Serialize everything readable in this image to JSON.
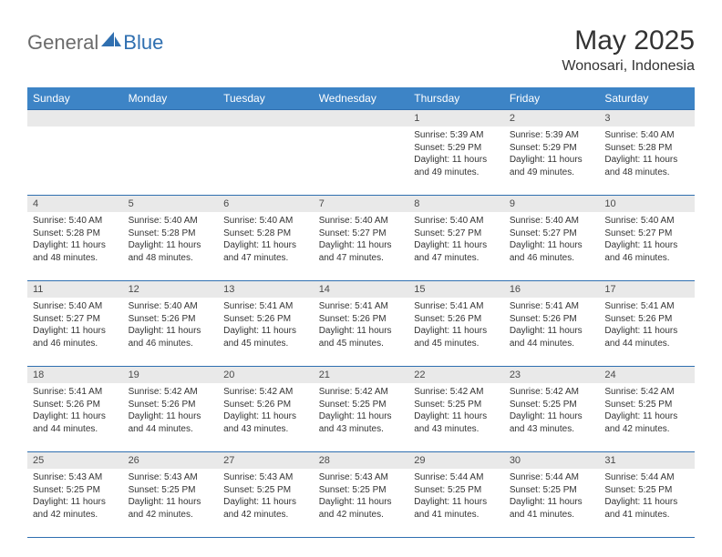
{
  "brand": {
    "general": "General",
    "blue": "Blue",
    "logo_color": "#2f6fb0",
    "text_gray": "#6b6b6b"
  },
  "title": {
    "month": "May 2025",
    "location": "Wonosari, Indonesia"
  },
  "colors": {
    "header_bg": "#3d84c6",
    "header_text": "#ffffff",
    "daynum_bg": "#e9e9e9",
    "border": "#2f6fb0",
    "body_text": "#333333"
  },
  "calendar": {
    "day_headers": [
      "Sunday",
      "Monday",
      "Tuesday",
      "Wednesday",
      "Thursday",
      "Friday",
      "Saturday"
    ],
    "weeks": [
      [
        null,
        null,
        null,
        null,
        {
          "n": "1",
          "sunrise": "5:39 AM",
          "sunset": "5:29 PM",
          "daylight": "11 hours and 49 minutes."
        },
        {
          "n": "2",
          "sunrise": "5:39 AM",
          "sunset": "5:29 PM",
          "daylight": "11 hours and 49 minutes."
        },
        {
          "n": "3",
          "sunrise": "5:40 AM",
          "sunset": "5:28 PM",
          "daylight": "11 hours and 48 minutes."
        }
      ],
      [
        {
          "n": "4",
          "sunrise": "5:40 AM",
          "sunset": "5:28 PM",
          "daylight": "11 hours and 48 minutes."
        },
        {
          "n": "5",
          "sunrise": "5:40 AM",
          "sunset": "5:28 PM",
          "daylight": "11 hours and 48 minutes."
        },
        {
          "n": "6",
          "sunrise": "5:40 AM",
          "sunset": "5:28 PM",
          "daylight": "11 hours and 47 minutes."
        },
        {
          "n": "7",
          "sunrise": "5:40 AM",
          "sunset": "5:27 PM",
          "daylight": "11 hours and 47 minutes."
        },
        {
          "n": "8",
          "sunrise": "5:40 AM",
          "sunset": "5:27 PM",
          "daylight": "11 hours and 47 minutes."
        },
        {
          "n": "9",
          "sunrise": "5:40 AM",
          "sunset": "5:27 PM",
          "daylight": "11 hours and 46 minutes."
        },
        {
          "n": "10",
          "sunrise": "5:40 AM",
          "sunset": "5:27 PM",
          "daylight": "11 hours and 46 minutes."
        }
      ],
      [
        {
          "n": "11",
          "sunrise": "5:40 AM",
          "sunset": "5:27 PM",
          "daylight": "11 hours and 46 minutes."
        },
        {
          "n": "12",
          "sunrise": "5:40 AM",
          "sunset": "5:26 PM",
          "daylight": "11 hours and 46 minutes."
        },
        {
          "n": "13",
          "sunrise": "5:41 AM",
          "sunset": "5:26 PM",
          "daylight": "11 hours and 45 minutes."
        },
        {
          "n": "14",
          "sunrise": "5:41 AM",
          "sunset": "5:26 PM",
          "daylight": "11 hours and 45 minutes."
        },
        {
          "n": "15",
          "sunrise": "5:41 AM",
          "sunset": "5:26 PM",
          "daylight": "11 hours and 45 minutes."
        },
        {
          "n": "16",
          "sunrise": "5:41 AM",
          "sunset": "5:26 PM",
          "daylight": "11 hours and 44 minutes."
        },
        {
          "n": "17",
          "sunrise": "5:41 AM",
          "sunset": "5:26 PM",
          "daylight": "11 hours and 44 minutes."
        }
      ],
      [
        {
          "n": "18",
          "sunrise": "5:41 AM",
          "sunset": "5:26 PM",
          "daylight": "11 hours and 44 minutes."
        },
        {
          "n": "19",
          "sunrise": "5:42 AM",
          "sunset": "5:26 PM",
          "daylight": "11 hours and 44 minutes."
        },
        {
          "n": "20",
          "sunrise": "5:42 AM",
          "sunset": "5:26 PM",
          "daylight": "11 hours and 43 minutes."
        },
        {
          "n": "21",
          "sunrise": "5:42 AM",
          "sunset": "5:25 PM",
          "daylight": "11 hours and 43 minutes."
        },
        {
          "n": "22",
          "sunrise": "5:42 AM",
          "sunset": "5:25 PM",
          "daylight": "11 hours and 43 minutes."
        },
        {
          "n": "23",
          "sunrise": "5:42 AM",
          "sunset": "5:25 PM",
          "daylight": "11 hours and 43 minutes."
        },
        {
          "n": "24",
          "sunrise": "5:42 AM",
          "sunset": "5:25 PM",
          "daylight": "11 hours and 42 minutes."
        }
      ],
      [
        {
          "n": "25",
          "sunrise": "5:43 AM",
          "sunset": "5:25 PM",
          "daylight": "11 hours and 42 minutes."
        },
        {
          "n": "26",
          "sunrise": "5:43 AM",
          "sunset": "5:25 PM",
          "daylight": "11 hours and 42 minutes."
        },
        {
          "n": "27",
          "sunrise": "5:43 AM",
          "sunset": "5:25 PM",
          "daylight": "11 hours and 42 minutes."
        },
        {
          "n": "28",
          "sunrise": "5:43 AM",
          "sunset": "5:25 PM",
          "daylight": "11 hours and 42 minutes."
        },
        {
          "n": "29",
          "sunrise": "5:44 AM",
          "sunset": "5:25 PM",
          "daylight": "11 hours and 41 minutes."
        },
        {
          "n": "30",
          "sunrise": "5:44 AM",
          "sunset": "5:25 PM",
          "daylight": "11 hours and 41 minutes."
        },
        {
          "n": "31",
          "sunrise": "5:44 AM",
          "sunset": "5:25 PM",
          "daylight": "11 hours and 41 minutes."
        }
      ]
    ],
    "labels": {
      "sunrise": "Sunrise: ",
      "sunset": "Sunset: ",
      "daylight": "Daylight: "
    }
  }
}
